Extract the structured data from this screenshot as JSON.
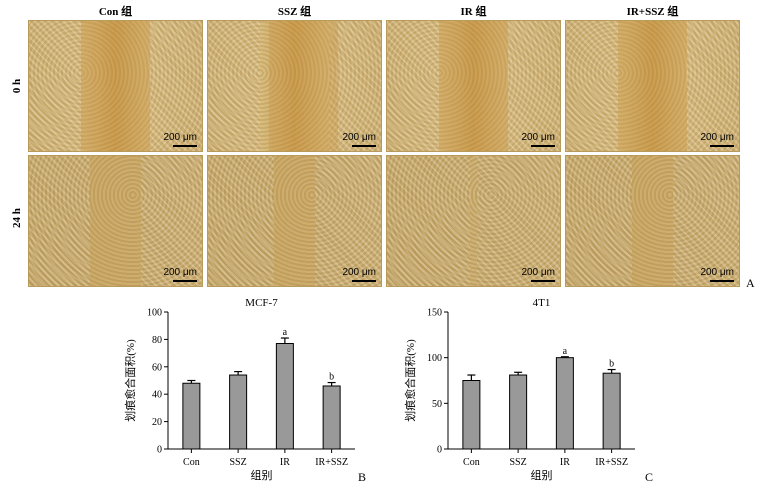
{
  "figure": {
    "columns": [
      "Con 组",
      "SSZ 组",
      "IR 组",
      "IR+SSZ 组"
    ],
    "rows": [
      "0 h",
      "24 h"
    ],
    "scale_label": "200 μm",
    "panel_labels": {
      "a": "A",
      "b": "B",
      "c": "C"
    }
  },
  "chart_data": [
    {
      "type": "bar",
      "title": "MCF-7",
      "xlabel": "组别",
      "ylabel": "划痕愈合面积(%)",
      "categories": [
        "Con",
        "SSZ",
        "IR",
        "IR+SSZ"
      ],
      "values": [
        48,
        54,
        77,
        46
      ],
      "errors": [
        2,
        2.5,
        4,
        2.5
      ],
      "annotations": [
        "",
        "",
        "a",
        "b"
      ],
      "ylim": [
        0,
        100
      ],
      "yticks": [
        0,
        20,
        40,
        60,
        80,
        100
      ],
      "bar_color": "#999999"
    },
    {
      "type": "bar",
      "title": "4T1",
      "xlabel": "组别",
      "ylabel": "划痕愈合面积(%)",
      "categories": [
        "Con",
        "SSZ",
        "IR",
        "IR+SSZ"
      ],
      "values": [
        75,
        81,
        100,
        83
      ],
      "errors": [
        6,
        3,
        1,
        4
      ],
      "annotations": [
        "",
        "",
        "a",
        "b"
      ],
      "ylim": [
        0,
        150
      ],
      "yticks": [
        0,
        50,
        100,
        150
      ],
      "bar_color": "#999999"
    }
  ]
}
